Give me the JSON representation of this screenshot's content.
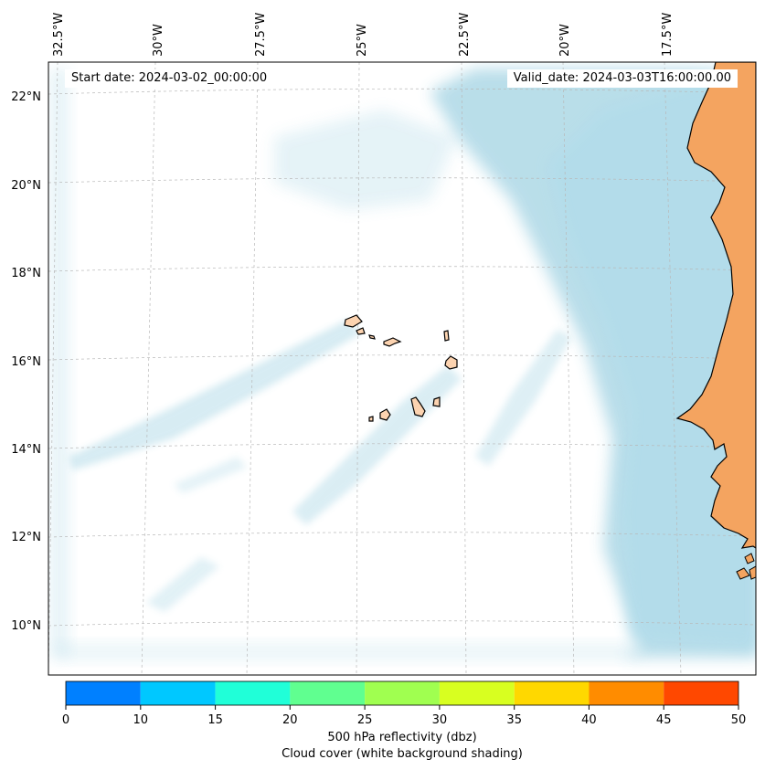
{
  "map": {
    "start_date_text": "Start date: 2024-03-02_00:00:00",
    "valid_date_text": "Valid_date: 2024-03-03T16:00:00.00",
    "lon_labels": [
      "32.5°W",
      "30°W",
      "27.5°W",
      "25°W",
      "22.5°W",
      "20°W",
      "17.5°W"
    ],
    "lat_labels": [
      "22°N",
      "20°N",
      "18°N",
      "16°N",
      "14°N",
      "12°N",
      "10°N"
    ],
    "colors": {
      "land": "#f4a460",
      "island": "#fcd3b0",
      "cloud": "#add8e6",
      "coastline": "#000000"
    }
  },
  "colorbar": {
    "ticks": [
      "0",
      "10",
      "15",
      "20",
      "25",
      "30",
      "35",
      "40",
      "45",
      "50"
    ],
    "colors": [
      "#0080ff",
      "#00c8ff",
      "#20ffd8",
      "#60ff90",
      "#a0ff50",
      "#d8ff20",
      "#ffd800",
      "#ff8c00",
      "#ff4800"
    ],
    "label_line1": "500 hPa reflectivity (dbz)",
    "label_line2": "Cloud cover (white background shading)"
  }
}
